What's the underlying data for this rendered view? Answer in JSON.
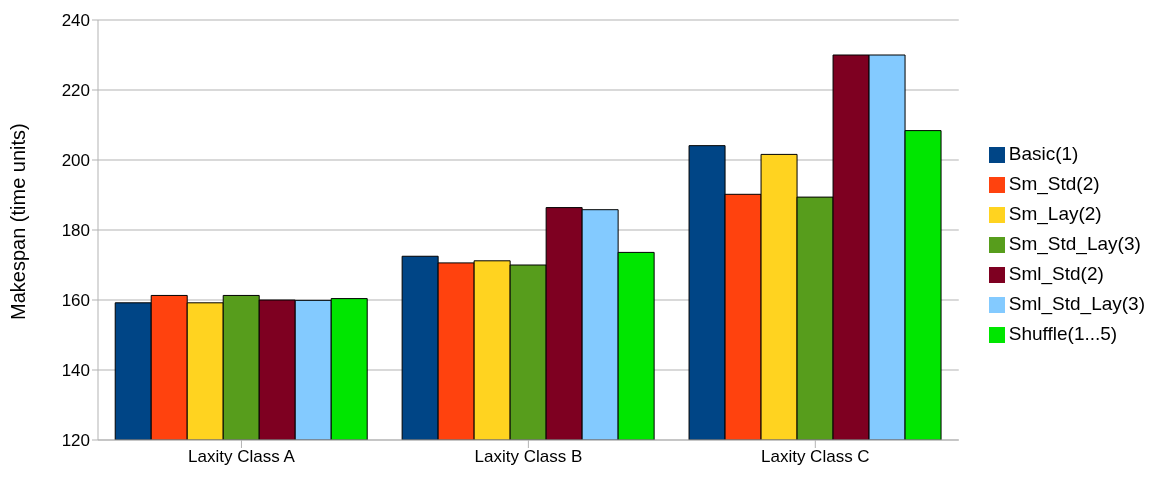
{
  "chart_data": {
    "type": "bar",
    "ylabel": "Makespan (time units)",
    "categories": [
      "Laxity Class A",
      "Laxity Class B",
      "Laxity Class C"
    ],
    "series": [
      {
        "name": "Basic(1)",
        "color": "#004586",
        "values": [
          159.2,
          172.5,
          204.1
        ]
      },
      {
        "name": "Sm_Std(2)",
        "color": "#ff420e",
        "values": [
          161.3,
          170.6,
          190.2
        ]
      },
      {
        "name": "Sm_Lay(2)",
        "color": "#ffd320",
        "values": [
          159.2,
          171.2,
          201.6
        ]
      },
      {
        "name": "Sm_Std_Lay(3)",
        "color": "#579d1c",
        "values": [
          161.3,
          170.0,
          189.4
        ]
      },
      {
        "name": "Sml_Std(2)",
        "color": "#7e0021",
        "values": [
          160.0,
          186.4,
          230.0
        ]
      },
      {
        "name": "Sml_Std_Lay(3)",
        "color": "#83caff",
        "values": [
          159.9,
          185.8,
          230.0
        ]
      },
      {
        "name": "Shuffle(1...5)",
        "color": "#00e600",
        "values": [
          160.4,
          173.6,
          208.4
        ]
      }
    ],
    "ylim": [
      120,
      240
    ],
    "yticks": [
      120,
      140,
      160,
      180,
      200,
      220,
      240
    ],
    "grid": "y",
    "legend": "right"
  }
}
